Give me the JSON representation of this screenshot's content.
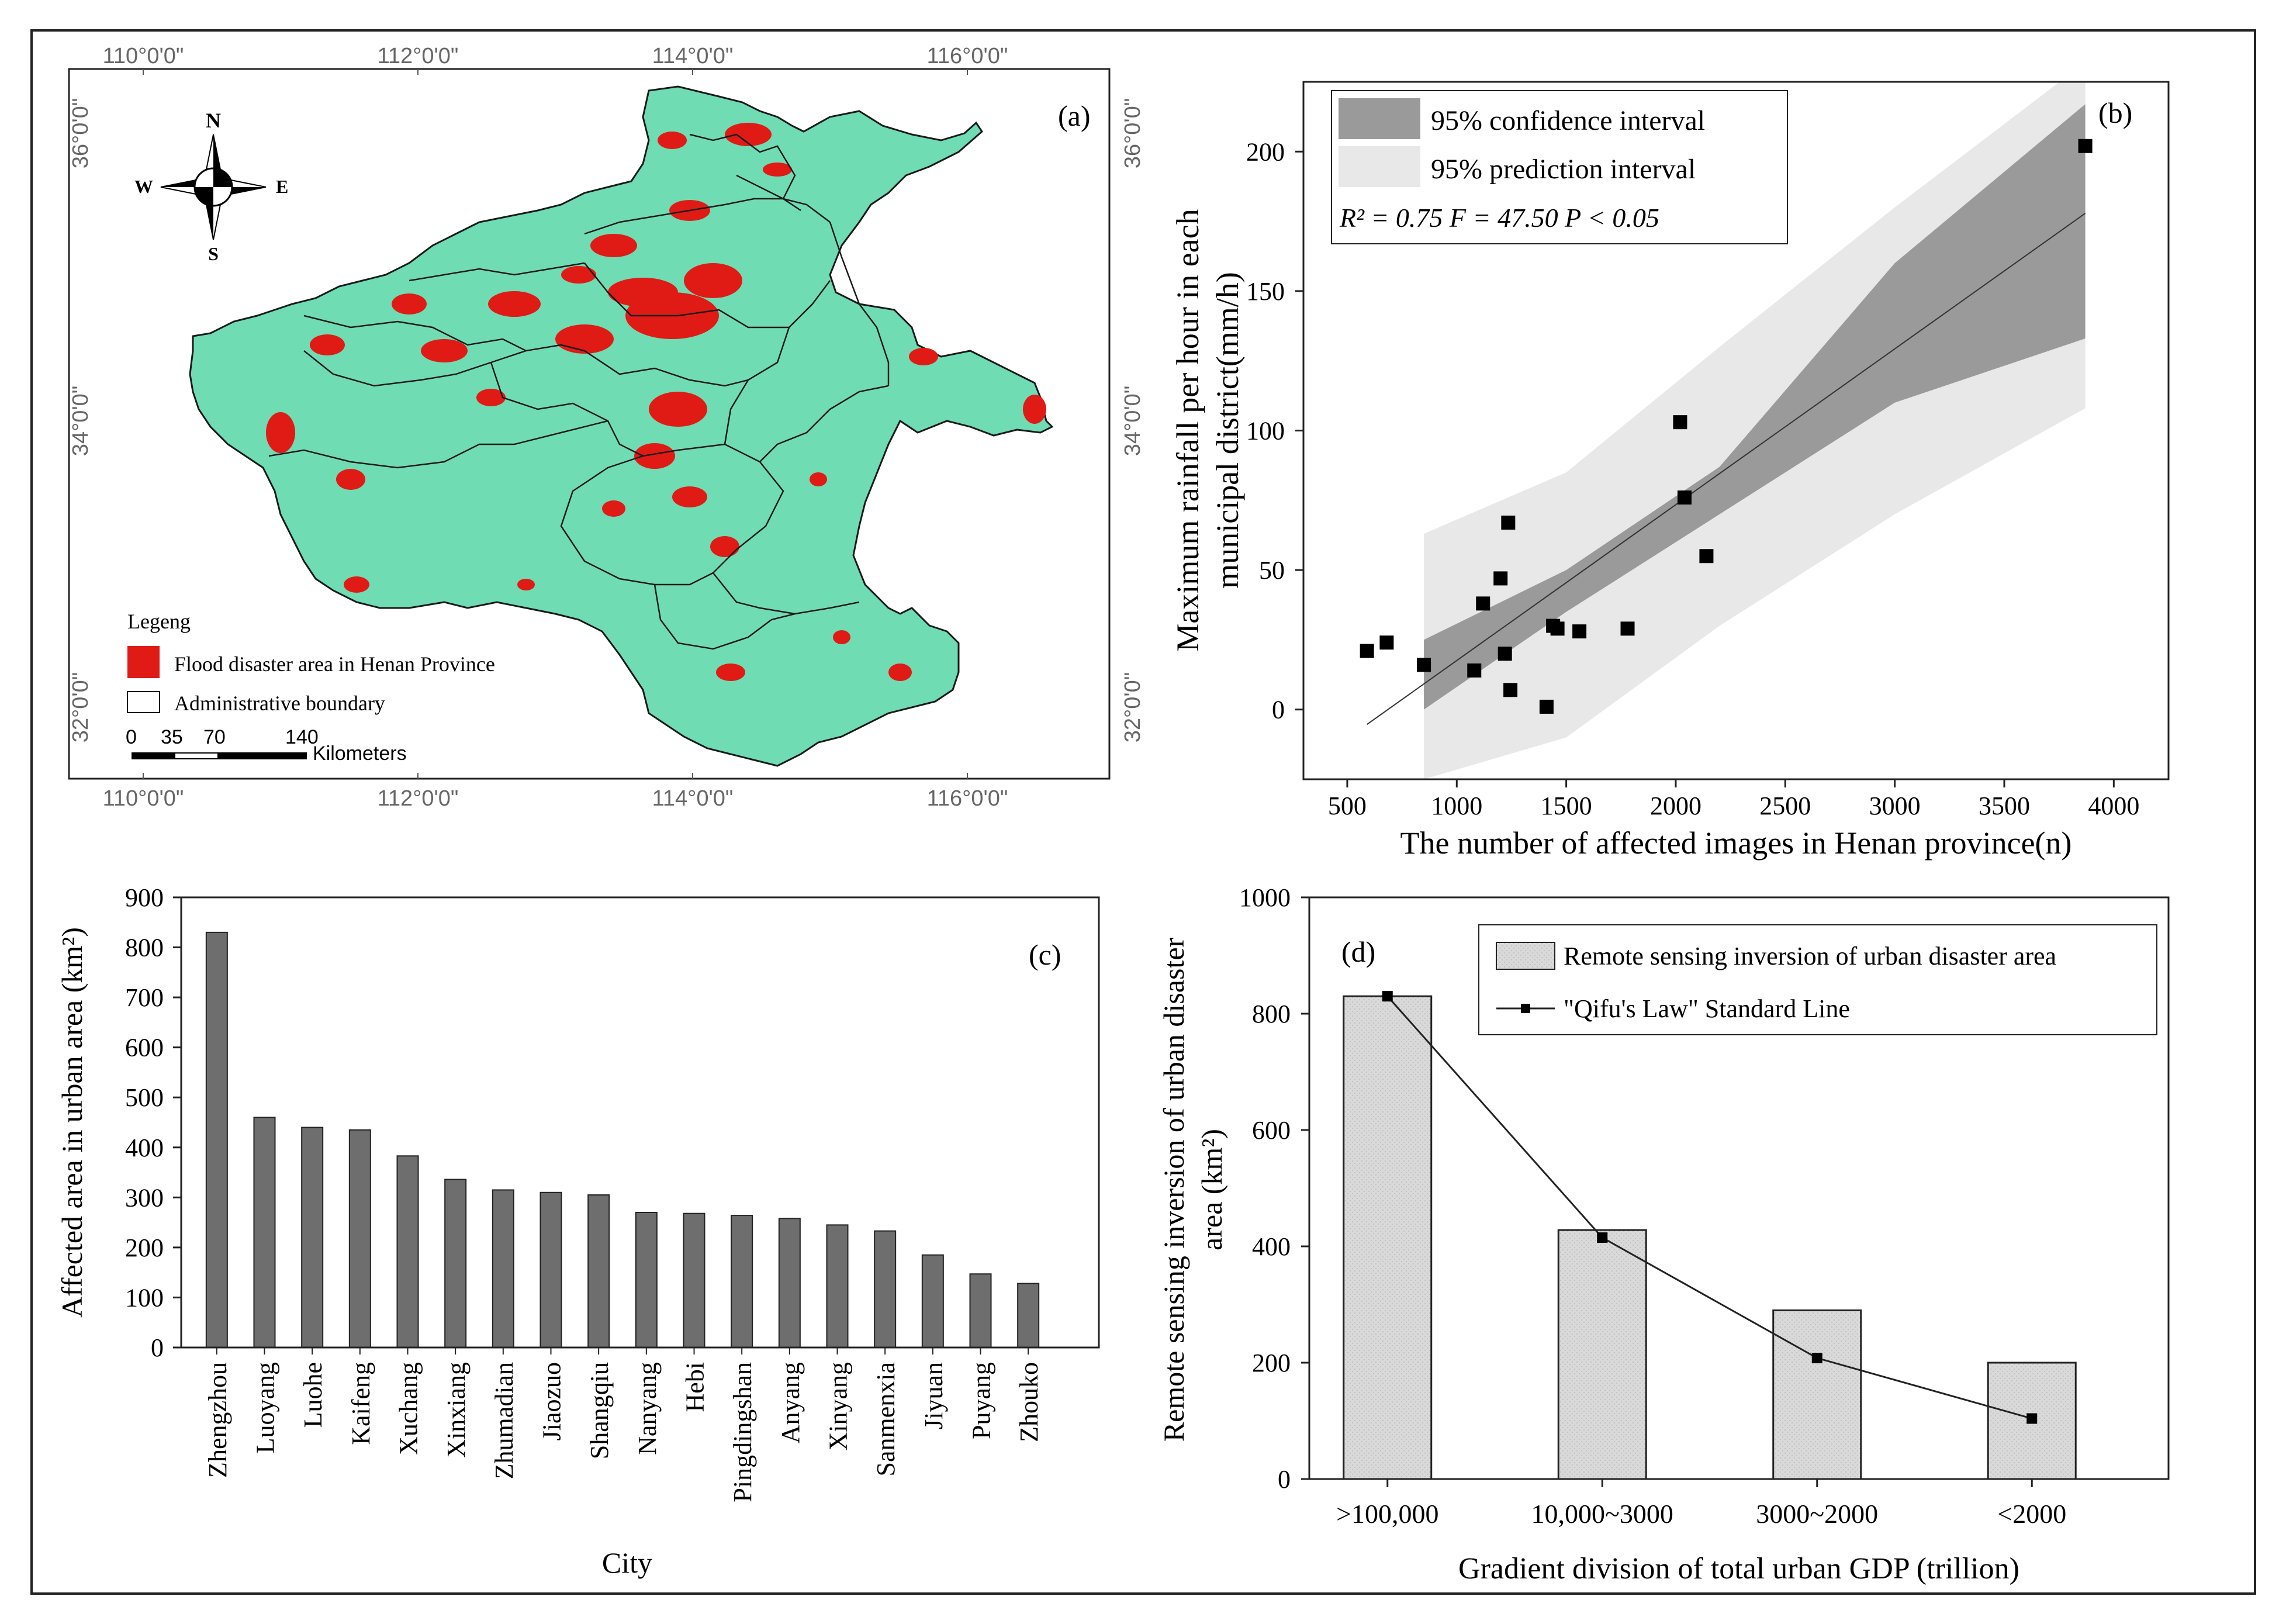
{
  "panel_a": {
    "label": "(a)",
    "lon_labels": [
      "110°0'0\"",
      "112°0'0\"",
      "114°0'0\"",
      "116°0'0\""
    ],
    "lat_labels": [
      "36°0'0\"",
      "34°0'0\"",
      "32°0'0\""
    ],
    "compass": {
      "n": "N",
      "s": "S",
      "e": "E",
      "w": "W"
    },
    "legend": {
      "title": "Legeng",
      "flood": "Flood disaster area in Henan Province",
      "boundary": "Administrative boundary",
      "scale_ticks": [
        "0",
        "35",
        "70",
        "140"
      ],
      "scale_unit": "Kilometers"
    },
    "colors": {
      "land": "#6fdcb4",
      "flood": "#e01a14",
      "boundary": "#1a1a1a"
    }
  },
  "chart_data": [
    {
      "type": "scatter",
      "panel": "(b)",
      "xlabel": "The number of affected images in Henan province(n)",
      "ylabel_line1": "Maximum rainfall per hour in each",
      "ylabel_line2": "municipal district(mm/h)",
      "xlim": [
        300,
        4250
      ],
      "ylim": [
        -25,
        225
      ],
      "xticks": [
        500,
        1000,
        1500,
        2000,
        2500,
        3000,
        3500,
        4000
      ],
      "yticks": [
        0,
        50,
        100,
        150,
        200
      ],
      "x": [
        590,
        680,
        850,
        1080,
        1120,
        1200,
        1220,
        1235,
        1245,
        1410,
        1440,
        1460,
        1560,
        1780,
        2020,
        2040,
        2140,
        3870
      ],
      "y": [
        21,
        24,
        16,
        14,
        38,
        47,
        20,
        67,
        7,
        1,
        30,
        29,
        28,
        29,
        103,
        76,
        55,
        202
      ],
      "fit": {
        "slope": 0.05586,
        "intercept": -38.3,
        "x_range": [
          590,
          3870
        ]
      },
      "confidence_band": {
        "x": [
          850,
          1500,
          2200,
          3000,
          3870
        ],
        "lower": [
          0,
          35,
          70,
          110,
          133
        ],
        "upper": [
          25,
          50,
          87,
          160,
          217
        ]
      },
      "prediction_band": {
        "x": [
          850,
          1500,
          2200,
          3000,
          3870
        ],
        "lower": [
          -25,
          -10,
          30,
          70,
          108
        ],
        "upper": [
          63,
          85,
          130,
          180,
          232
        ]
      },
      "legend": {
        "ci": "95% confidence interval",
        "pi": "95% prediction interval",
        "stats": "R² = 0.75   F = 47.50   P < 0.05"
      },
      "colors": {
        "ci": "#9a9a9a",
        "pi": "#e8e8e8",
        "point": "#000000"
      }
    },
    {
      "type": "bar",
      "panel": "(c)",
      "title": "",
      "xlabel": "City",
      "ylabel": "Affected area in urban area (km²)",
      "ylim": [
        0,
        900
      ],
      "yticks": [
        0,
        100,
        200,
        300,
        400,
        500,
        600,
        700,
        800,
        900
      ],
      "categories": [
        "Zhengzhou",
        "Luoyang",
        "Luohe",
        "Kaifeng",
        "Xuchang",
        "Xinxiang",
        "Zhumadian",
        "Jiaozuo",
        "Shangqiu",
        "Nanyang",
        "Hebi",
        "Pingdingshan",
        "Anyang",
        "Xinyang",
        "Sanmenxia",
        "Jiyuan",
        "Puyang",
        "Zhouko"
      ],
      "values": [
        830,
        460,
        440,
        435,
        383,
        336,
        315,
        310,
        305,
        270,
        268,
        264,
        258,
        245,
        233,
        185,
        147,
        128
      ],
      "colors": {
        "bar": "#6e6e6e"
      }
    },
    {
      "type": "bar",
      "panel": "(d)",
      "xlabel": "Gradient division of total urban GDP (trillion)",
      "ylabel_line1": "Remote sensing inversion of urban disaster",
      "ylabel_line2": "area (km²)",
      "ylim": [
        0,
        1000
      ],
      "yticks": [
        0,
        200,
        400,
        600,
        800,
        1000
      ],
      "categories": [
        ">100,000",
        "10,000~3000",
        "3000~2000",
        "<2000"
      ],
      "series": [
        {
          "name": "Remote sensing inversion of urban disaster area",
          "kind": "bar",
          "values": [
            830,
            428,
            290,
            200
          ]
        },
        {
          "name": "\"Qifu's Law\" Standard Line",
          "kind": "line",
          "values": [
            830,
            415,
            208,
            104
          ]
        }
      ],
      "colors": {
        "bar": "#d6d6d6",
        "line": "#222222"
      }
    }
  ]
}
